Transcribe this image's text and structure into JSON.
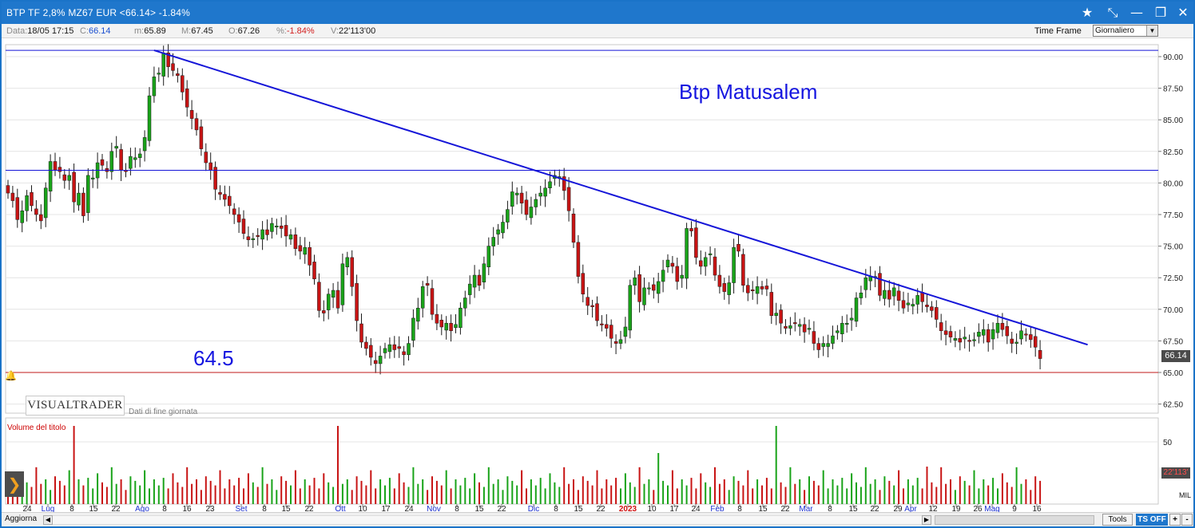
{
  "window": {
    "title": "BTP TF 2,8% MZ67 EUR <66.14> -1.84%",
    "buttons": [
      "star-icon",
      "pin-icon",
      "minimize-icon",
      "maximize-icon",
      "close-icon"
    ]
  },
  "infobar": {
    "data_label": "Data:",
    "data_value": "18/05 17:15",
    "close_label": "C:",
    "close_value": "66.14",
    "min_label": "m:",
    "min_value": "65.89",
    "max_label": "M:",
    "max_value": "67.45",
    "open_label": "O:",
    "open_value": "67.26",
    "pct_label": "%:",
    "pct_value": "-1.84%",
    "vol_label": "V:",
    "vol_value": "22'113'00",
    "timeframe_label": "Time Frame",
    "timeframe_value": "Giornaliero"
  },
  "chart_data": {
    "type": "candlestick",
    "y_axis": {
      "ticks": [
        "90.00",
        "87.50",
        "85.00",
        "82.50",
        "80.00",
        "77.50",
        "75.00",
        "72.50",
        "70.00",
        "67.50",
        "65.00",
        "62.50"
      ],
      "range": [
        61.5,
        91.0
      ]
    },
    "volume_axis": {
      "ticks": [
        "50"
      ],
      "label": "Volume del titolo",
      "unit_tag": "MIL",
      "last_value": "22'113'"
    },
    "x_axis_labels": [
      "24",
      "Lug",
      "8",
      "15",
      "22",
      "Ago",
      "8",
      "16",
      "23",
      "Set",
      "8",
      "15",
      "22",
      "Ott",
      "10",
      "17",
      "24",
      "Nov",
      "8",
      "15",
      "22",
      "Dic",
      "8",
      "15",
      "22",
      "2023",
      "10",
      "17",
      "24",
      "Feb",
      "8",
      "15",
      "22",
      "Mar",
      "8",
      "15",
      "22",
      "29",
      "Apr",
      "12",
      "19",
      "26",
      "Mag",
      "9",
      "16"
    ],
    "horizontal_lines": [
      90.5,
      81.0,
      65.0
    ],
    "trendline": {
      "from": {
        "bar": 31,
        "price": 90.5
      },
      "to": {
        "bar": 224,
        "price": 67.2
      }
    },
    "annotations": {
      "title_text": "Btp Matusalem",
      "level_text": "64.5"
    },
    "last_price_tag": "66.14",
    "watermark": {
      "brand": "VISUALTRADER",
      "note": "Dati di fine giornata"
    },
    "closes": [
      79.2,
      78.6,
      77.1,
      77.8,
      79.0,
      78.2,
      77.5,
      77.0,
      79.6,
      81.7,
      81.0,
      80.9,
      80.2,
      80.6,
      78.5,
      79.2,
      77.4,
      80.6,
      80.4,
      81.6,
      81.4,
      80.9,
      82.5,
      82.9,
      81.0,
      80.9,
      82.1,
      82.0,
      82.3,
      83.6,
      86.9,
      88.4,
      88.7,
      90.3,
      89.2,
      88.9,
      88.5,
      87.2,
      86.0,
      85.1,
      84.2,
      82.7,
      81.6,
      81.0,
      79.5,
      79.1,
      78.7,
      78.2,
      77.5,
      76.9,
      76.0,
      75.5,
      75.6,
      75.8,
      76.3,
      75.9,
      76.8,
      76.6,
      76.4,
      75.8,
      75.9,
      74.8,
      74.6,
      74.9,
      73.5,
      72.4,
      69.9,
      69.7,
      71.2,
      71.5,
      70.1,
      73.6,
      74.1,
      71.8,
      69.1,
      67.4,
      66.9,
      66.2,
      65.7,
      66.3,
      66.9,
      67.2,
      66.8,
      66.9,
      66.4,
      67.3,
      69.3,
      70.1,
      71.8,
      71.9,
      69.6,
      68.9,
      68.6,
      68.9,
      68.3,
      68.8,
      70.1,
      70.9,
      72.0,
      72.7,
      71.9,
      73.6,
      75.0,
      75.7,
      76.3,
      76.9,
      77.9,
      79.3,
      79.2,
      78.4,
      77.5,
      78.1,
      78.7,
      79.2,
      79.6,
      80.1,
      80.6,
      80.5,
      79.4,
      77.8,
      75.3,
      72.6,
      71.2,
      70.3,
      70.2,
      69.1,
      68.8,
      68.5,
      67.7,
      67.3,
      67.6,
      68.6,
      71.9,
      72.5,
      70.6,
      71.7,
      71.7,
      71.5,
      72.2,
      73.1,
      73.9,
      73.4,
      72.2,
      72.7,
      76.4,
      76.2,
      74.1,
      73.4,
      74.1,
      74.4,
      72.7,
      71.8,
      71.4,
      72.1,
      74.9,
      74.6,
      71.9,
      71.3,
      71.5,
      71.8,
      71.6,
      71.6,
      69.5,
      69.7,
      68.9,
      68.5,
      68.7,
      68.9,
      68.8,
      68.2,
      68.5,
      67.3,
      66.8,
      67.3,
      67.3,
      67.9,
      68.3,
      68.9,
      68.9,
      69.3,
      70.9,
      71.3,
      72.5,
      72.6,
      72.6,
      71.1,
      71.5,
      70.8,
      71.7,
      70.7,
      70.1,
      70.5,
      70.4,
      71.1,
      70.6,
      70.2,
      69.9,
      69.2,
      68.3,
      68.0,
      67.8,
      67.7,
      67.4,
      67.8,
      67.5,
      67.6,
      68.2,
      68.4,
      67.4,
      68.4,
      68.9,
      68.4,
      67.9,
      67.3,
      67.4,
      68.3,
      68.0,
      67.6,
      67.0,
      66.1
    ]
  },
  "statusbar": {
    "refresh_label": "Aggiorna",
    "tools_label": "Tools",
    "tsoff_label": "TS OFF",
    "plus_label": "+",
    "minus_label": "-"
  }
}
